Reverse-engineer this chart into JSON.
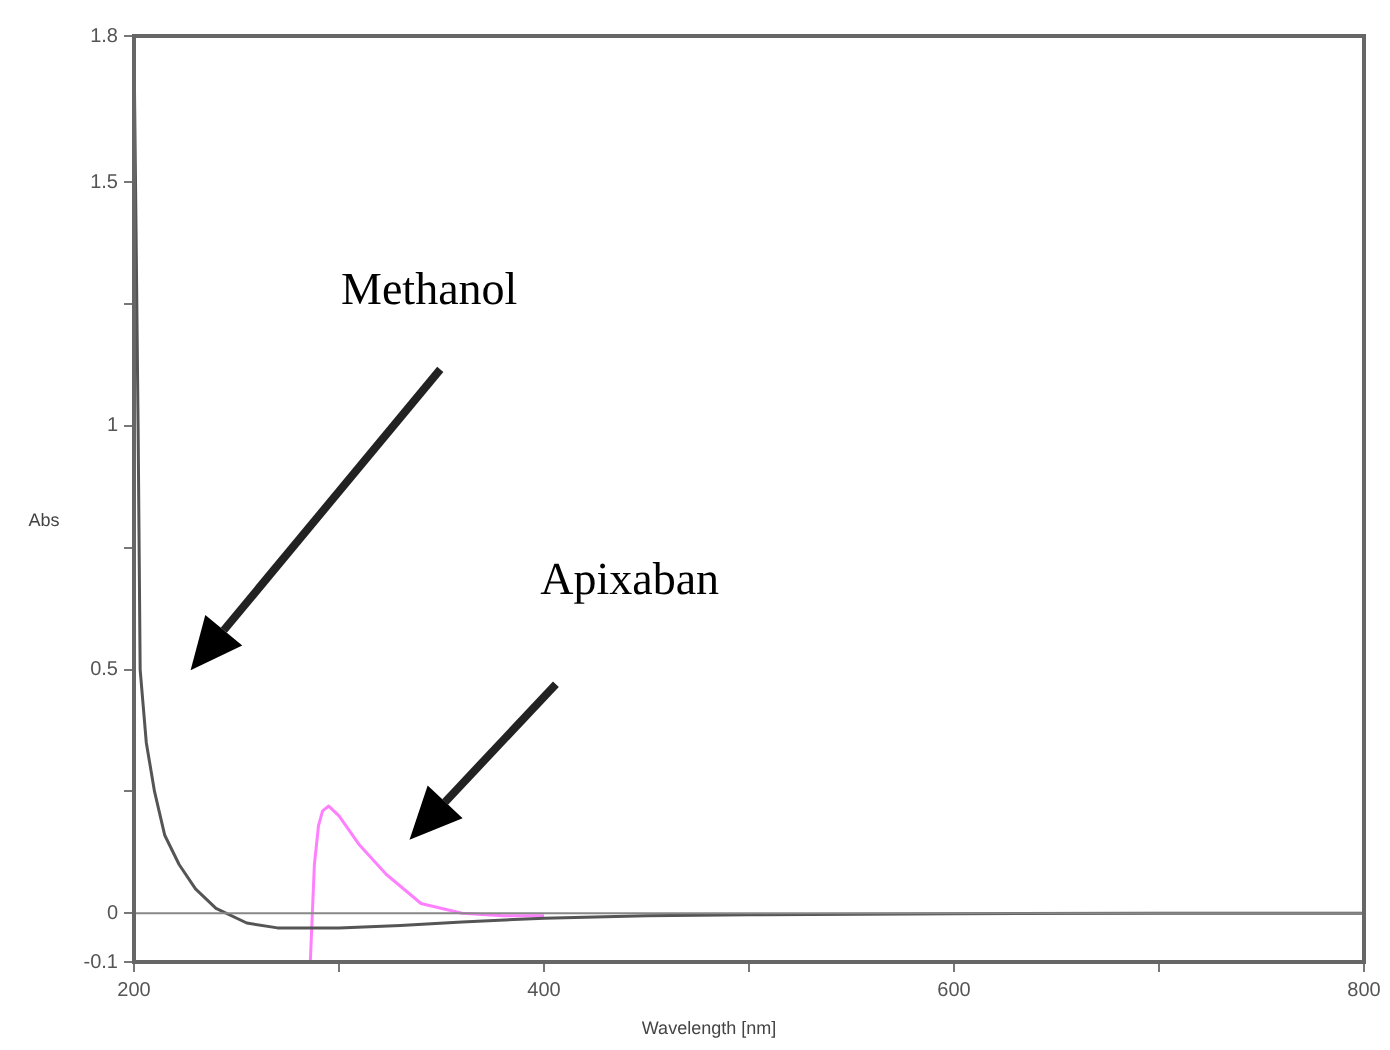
{
  "chart_data": {
    "type": "line",
    "xlabel": "Wavelength [nm]",
    "ylabel": "Abs",
    "xlim": [
      200,
      800
    ],
    "xticks": [
      200,
      {
        "value": 300,
        "label": null
      },
      400,
      {
        "value": 500,
        "label": null
      },
      600,
      {
        "value": 700,
        "label": null
      },
      800
    ],
    "ylim": [
      -0.1,
      1.8
    ],
    "yticks": [
      -0.1,
      0,
      {
        "value": 0.25,
        "label": null
      },
      0.5,
      {
        "value": 0.75,
        "label": null
      },
      1,
      {
        "value": 1.25,
        "label": null
      },
      1.5,
      1.8
    ],
    "grid": false,
    "ref_lines": [
      {
        "axis": "y",
        "value": 0,
        "color": "#888888"
      }
    ],
    "series": [
      {
        "color": "#555555",
        "x": [
          200,
          201,
          202,
          203,
          206,
          210,
          215,
          222,
          230,
          240,
          255,
          270,
          300,
          330,
          360,
          400,
          450,
          500,
          600,
          700,
          800
        ],
        "values": [
          1.78,
          1.4,
          1.0,
          0.5,
          0.35,
          0.25,
          0.16,
          0.1,
          0.05,
          0.01,
          -0.02,
          -0.03,
          -0.03,
          -0.025,
          -0.018,
          -0.01,
          -0.005,
          -0.003,
          -0.001,
          0,
          0
        ]
      },
      {
        "color": "#ff80ff",
        "x": [
          286,
          287,
          288,
          290,
          292,
          295,
          300,
          310,
          323,
          340,
          360,
          380,
          400
        ],
        "values": [
          -0.1,
          0.0,
          0.1,
          0.18,
          0.21,
          0.22,
          0.2,
          0.14,
          0.08,
          0.02,
          0.0,
          -0.005,
          -0.005
        ]
      }
    ],
    "annotations": [
      "Methanol",
      "Apixaban"
    ]
  }
}
